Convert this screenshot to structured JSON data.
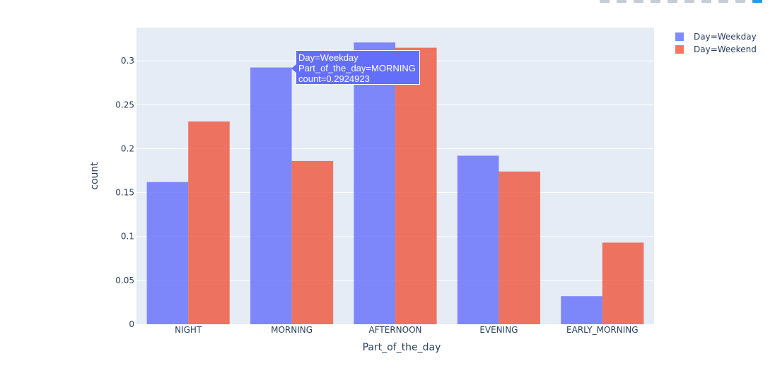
{
  "chart_data": {
    "type": "bar",
    "title": "",
    "xlabel": "Part_of_the_day",
    "ylabel": "count",
    "categories": [
      "NIGHT",
      "MORNING",
      "AFTERNOON",
      "EVENING",
      "EARLY_MORNING"
    ],
    "series": [
      {
        "name": "Day=Weekday",
        "color": "#636efa",
        "values": [
          0.162,
          0.2924923,
          0.321,
          0.192,
          0.032
        ]
      },
      {
        "name": "Day=Weekend",
        "color": "#ef553b",
        "values": [
          0.231,
          0.186,
          0.315,
          0.174,
          0.093
        ]
      }
    ],
    "ylim": [
      0,
      0.338
    ],
    "yticks": [
      0,
      0.05,
      0.1,
      0.15,
      0.2,
      0.25,
      0.3
    ],
    "ytick_labels": [
      "0",
      "0.05",
      "0.1",
      "0.15",
      "0.2",
      "0.25",
      "0.3"
    ],
    "legend_position": "top-right",
    "grid": true,
    "plot_bgcolor": "#e5ecf6"
  },
  "tooltip": {
    "line1": "Day=Weekday",
    "line2": "Part_of_the_day=MORNING",
    "line3": "count=0.2924923"
  }
}
